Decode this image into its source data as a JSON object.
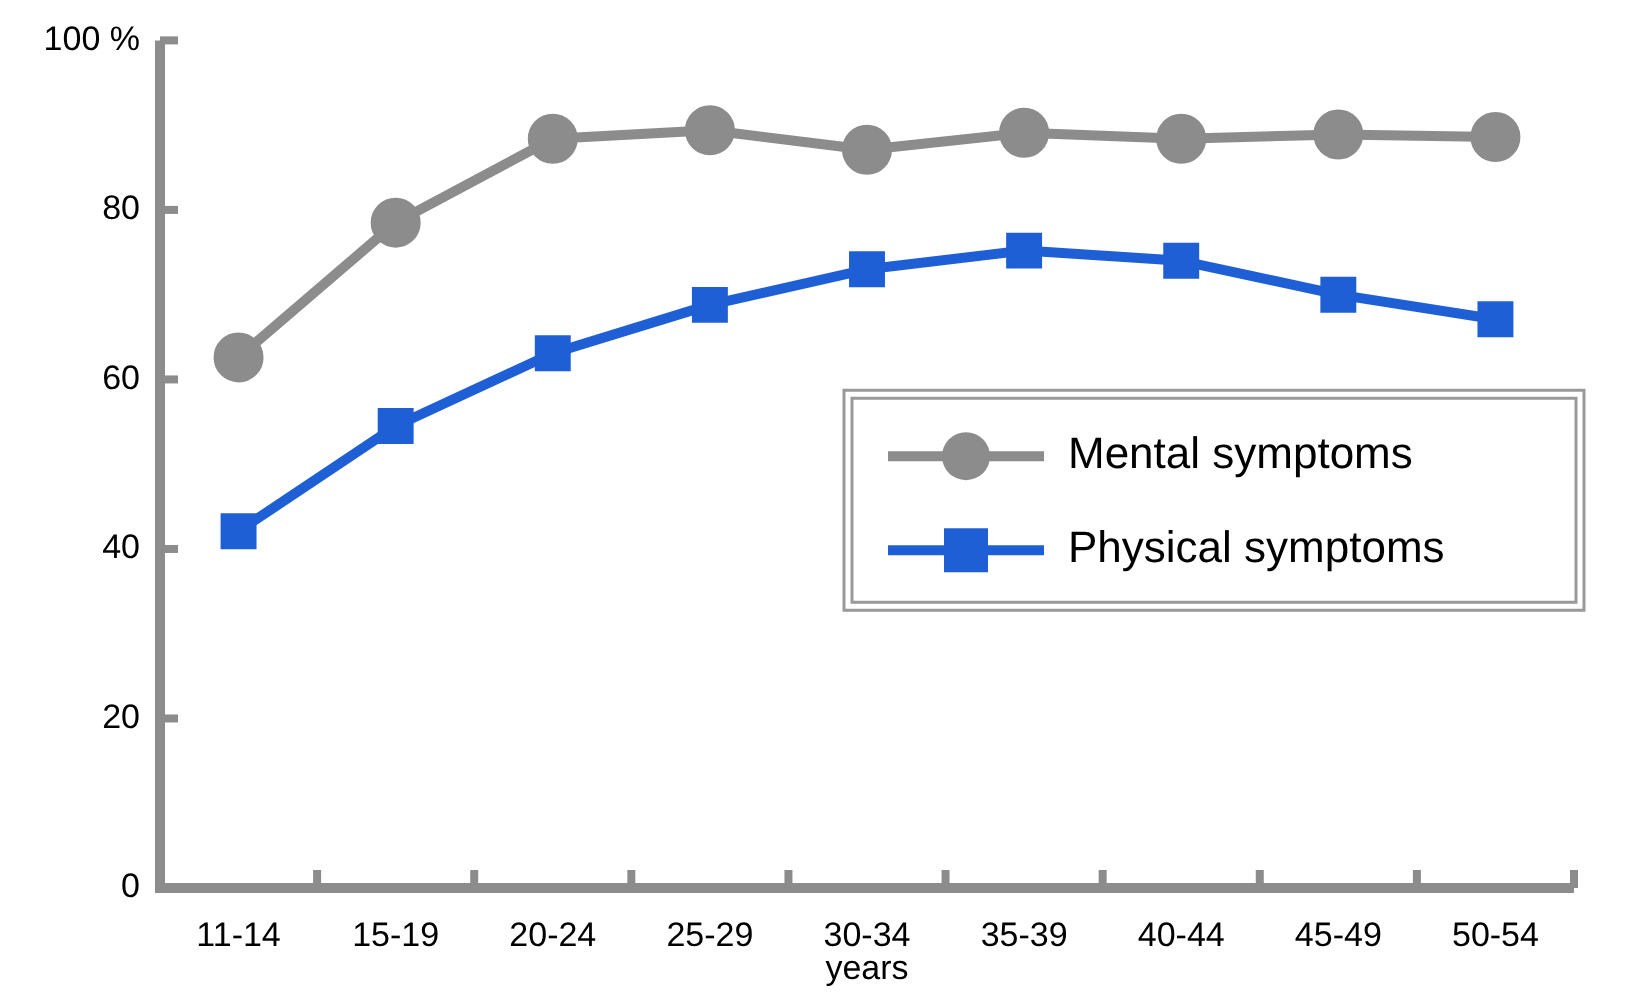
{
  "chart_data": {
    "type": "line",
    "xlabel": "years",
    "categories": [
      "11-14",
      "15-19",
      "20-24",
      "25-29",
      "30-34",
      "35-39",
      "40-44",
      "45-49",
      "50-54"
    ],
    "series": [
      {
        "name": "Mental symptoms",
        "color": "#8c8c8c",
        "marker": "circle",
        "values": [
          62.6,
          78.5,
          88.4,
          89.4,
          87.1,
          89.1,
          88.4,
          88.9,
          88.6
        ]
      },
      {
        "name": "Physical symptoms",
        "color": "#1f5fd6",
        "marker": "square",
        "values": [
          42.1,
          54.5,
          63.1,
          68.8,
          73.0,
          75.2,
          74.0,
          70.0,
          67.1
        ]
      }
    ],
    "ylim": [
      0,
      100
    ],
    "yticks": [
      0,
      20,
      40,
      60,
      {
        "value": 100,
        "label": "100 %"
      },
      80
    ],
    "grid": false,
    "legend": "right",
    "line_style": "solid"
  }
}
